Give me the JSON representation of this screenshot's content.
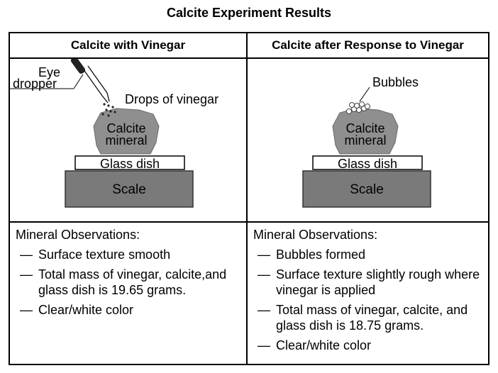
{
  "title": "Calcite Experiment Results",
  "columns": [
    {
      "header": "Calcite with Vinegar",
      "illustration": {
        "eye_dropper_label_1": "Eye",
        "eye_dropper_label_2": "dropper",
        "drops_label": "Drops of vinegar",
        "mineral_label_1": "Calcite",
        "mineral_label_2": "mineral",
        "dish_label": "Glass dish",
        "scale_label": "Scale"
      },
      "observations_heading": "Mineral Observations:",
      "observations": [
        "Surface texture smooth",
        "Total mass of vinegar, calcite,and glass dish is 19.65 grams.",
        "Clear/white color"
      ]
    },
    {
      "header": "Calcite after Response to Vinegar",
      "illustration": {
        "bubbles_label": "Bubbles",
        "mineral_label_1": "Calcite",
        "mineral_label_2": "mineral",
        "dish_label": "Glass dish",
        "scale_label": "Scale"
      },
      "observations_heading": "Mineral Observations:",
      "observations": [
        "Bubbles formed",
        "Surface texture slightly rough where vinegar is applied",
        "Total mass of vinegar, calcite, and glass dish is 18.75 grams.",
        "Clear/white color"
      ]
    }
  ],
  "dash": "—",
  "colors": {
    "scale": "#7a7a7a",
    "mineral": "#8f8f8f",
    "border": "#000000"
  }
}
